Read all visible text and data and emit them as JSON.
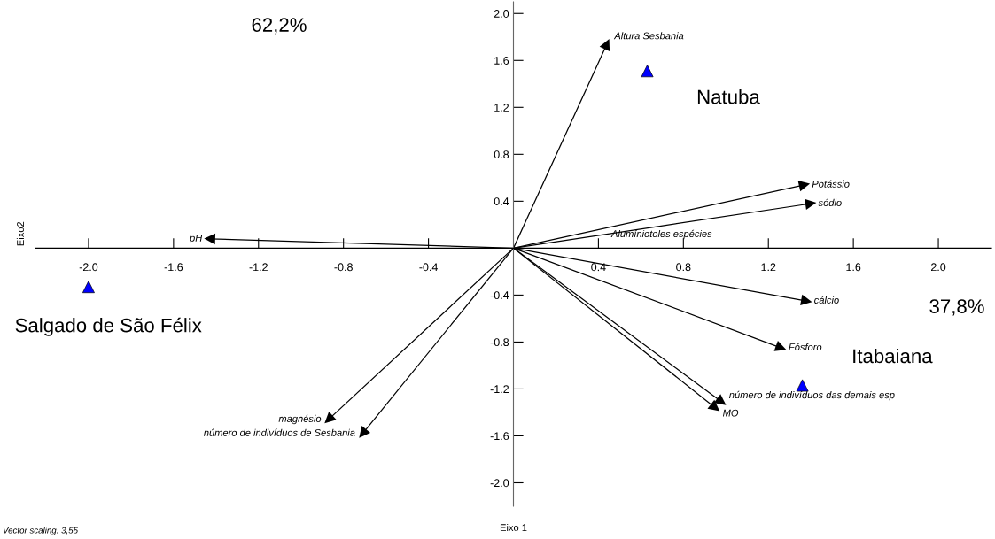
{
  "chart_data": {
    "type": "scatter",
    "xlabel": "Eixo 1",
    "ylabel": "Eixo2",
    "xlim": [
      -2.25,
      2.25
    ],
    "ylim": [
      -2.2,
      2.1
    ],
    "xticks": [
      {
        "value": -2,
        "label": "-2.0"
      },
      -1.6,
      -1.2,
      -0.8,
      -0.4,
      0.4,
      0.8,
      1.2,
      1.6,
      {
        "value": 2,
        "label": "2.0"
      }
    ],
    "yticks": [
      {
        "value": -2,
        "label": "-2.0"
      },
      -1.6,
      -1.2,
      -0.8,
      -0.4,
      0.4,
      0.8,
      1.2,
      1.6,
      {
        "value": 2,
        "label": "2.0"
      }
    ],
    "grid": false,
    "series": [
      {
        "name": "Altura Sesbania",
        "type": "line",
        "color": "#000000",
        "x": [
          0,
          0.44
        ],
        "values": [
          0,
          1.74
        ]
      },
      {
        "name": "Potássio",
        "type": "line",
        "color": "#000000",
        "x": [
          0,
          1.37
        ],
        "values": [
          0,
          0.54
        ]
      },
      {
        "name": "sódio",
        "type": "line",
        "color": "#000000",
        "x": [
          0,
          1.4
        ],
        "values": [
          0,
          0.38
        ]
      },
      {
        "name": "pH",
        "type": "line",
        "color": "#000000",
        "x": [
          0,
          -1.43
        ],
        "values": [
          0,
          0.08
        ]
      },
      {
        "name": "cálcio",
        "type": "line",
        "color": "#000000",
        "x": [
          0,
          1.38
        ],
        "values": [
          0,
          -0.45
        ]
      },
      {
        "name": "Fósforo",
        "type": "line",
        "color": "#000000",
        "x": [
          0,
          1.26
        ],
        "values": [
          0,
          -0.85
        ]
      },
      {
        "name": "número de indivíduos das demais esp",
        "type": "line",
        "color": "#000000",
        "x": [
          0,
          0.98
        ],
        "values": [
          0,
          -1.31
        ]
      },
      {
        "name": "MO",
        "type": "line",
        "color": "#000000",
        "x": [
          0,
          0.95
        ],
        "values": [
          0,
          -1.36
        ]
      },
      {
        "name": "magnésio",
        "type": "line",
        "color": "#000000",
        "x": [
          0,
          -0.87
        ],
        "values": [
          0,
          -1.46
        ]
      },
      {
        "name": "número de indivíduos de Sesbania",
        "type": "line",
        "color": "#000000",
        "x": [
          0,
          -0.71
        ],
        "values": [
          0,
          -1.58
        ]
      },
      {
        "name": "Natuba",
        "marker": "triangle",
        "color": "#0000ff",
        "x": [
          0.63
        ],
        "values": [
          1.51
        ]
      },
      {
        "name": "Salgado de São Félix",
        "marker": "triangle",
        "color": "#0000ff",
        "x": [
          -2.0
        ],
        "values": [
          -0.33
        ]
      },
      {
        "name": "Itabaiana",
        "marker": "triangle",
        "color": "#0000ff",
        "x": [
          1.36
        ],
        "values": [
          -1.17
        ]
      }
    ],
    "annotations": [
      "Alumíniotoles espécies",
      "62,2%",
      "37,8%",
      "Vector scaling: 3,55"
    ]
  }
}
